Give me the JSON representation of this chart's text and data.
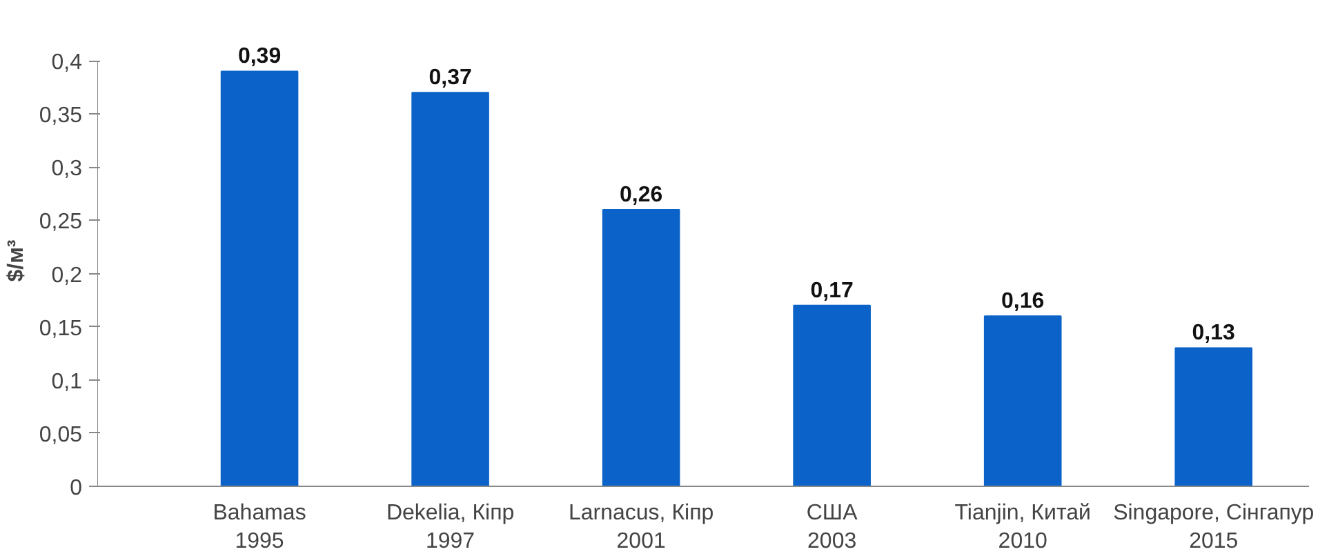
{
  "chart_data": {
    "type": "bar",
    "ylabel": "$/м³",
    "categories": [
      "Bahamas\n1995",
      "Dekelia, Кіпр\n1997",
      "Larnacus, Кіпр\n2001",
      "США\n2003",
      "Tianjin, Китай\n2010",
      "Singapore, Сінгапур\n2015"
    ],
    "values": [
      0.39,
      0.37,
      0.26,
      0.17,
      0.16,
      0.13
    ],
    "value_labels": [
      "0,39",
      "0,37",
      "0,26",
      "0,17",
      "0,16",
      "0,13"
    ],
    "color": "#0b63c9",
    "ylim": [
      0,
      0.4
    ],
    "yticks": [
      {
        "value": 0,
        "label": "0"
      },
      {
        "value": 0.05,
        "label": "0,05"
      },
      {
        "value": 0.1,
        "label": "0,1"
      },
      {
        "value": 0.15,
        "label": "0,15"
      },
      {
        "value": 0.2,
        "label": "0,2"
      },
      {
        "value": 0.25,
        "label": "0,25"
      },
      {
        "value": 0.3,
        "label": "0,3"
      },
      {
        "value": 0.35,
        "label": "0,35"
      },
      {
        "value": 0.4,
        "label": "0,4"
      }
    ],
    "grid": false
  }
}
